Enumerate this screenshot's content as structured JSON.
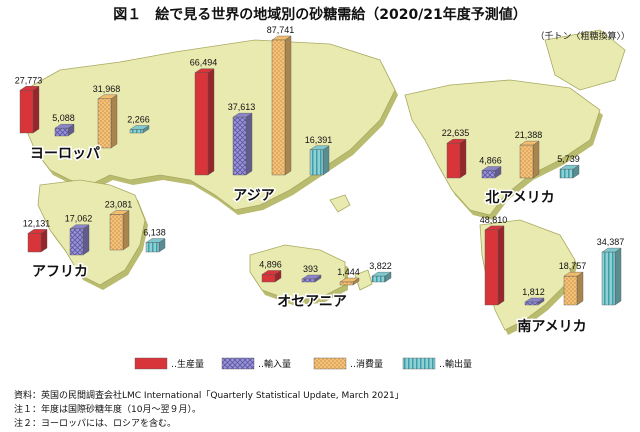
{
  "title": "図１　絵で見る世界の地域別の砂糖需給（2020/21年度予測値）",
  "unit_label": "（千トン〈粗糖換算〉）",
  "colors": {
    "production": "#d8353a",
    "imports": "#8a84c8",
    "consumption": "#f2be6e",
    "exports": "#7ec9cf",
    "land": "#e9eab0",
    "land_shadow": "#b9bb6e"
  },
  "chart_data": {
    "type": "bar",
    "title": "図１　絵で見る世界の地域別の砂糖需給（2020/21年度予測値）",
    "unit": "千トン〈粗糖換算〉",
    "series_names": [
      "生産量",
      "輸入量",
      "消費量",
      "輸出量"
    ],
    "legend_labels": [
      "‥生産量",
      "‥輸入量",
      "‥消費量",
      "‥輸出量"
    ],
    "regions": [
      {
        "name": "ヨーロッパ",
        "production": 27773,
        "imports": 5088,
        "consumption": 31968,
        "exports": 2266,
        "labels": [
          "27,773",
          "5,088",
          "31,968",
          "2,266"
        ]
      },
      {
        "name": "アジア",
        "production": 66494,
        "imports": 37613,
        "consumption": 87741,
        "exports": 16391,
        "labels": [
          "66,494",
          "37,613",
          "87,741",
          "16,391"
        ]
      },
      {
        "name": "アフリカ",
        "production": 12131,
        "imports": 17062,
        "consumption": 23081,
        "exports": 6138,
        "labels": [
          "12,131",
          "17,062",
          "23,081",
          "6,138"
        ]
      },
      {
        "name": "オセアニア",
        "production": 4896,
        "imports": 393,
        "consumption": 1444,
        "exports": 3822,
        "labels": [
          "4,896",
          "393",
          "1,444",
          "3,822"
        ]
      },
      {
        "name": "北アメリカ",
        "production": 22635,
        "imports": 4866,
        "consumption": 21388,
        "exports": 5739,
        "labels": [
          "22,635",
          "4,866",
          "21,388",
          "5,739"
        ]
      },
      {
        "name": "南アメリカ",
        "production": 48810,
        "imports": 1812,
        "consumption": 18757,
        "exports": 34387,
        "labels": [
          "48,810",
          "1,812",
          "18,757",
          "34,387"
        ]
      }
    ]
  },
  "notes": {
    "source": "資料：英国の民間調査会社LMC International「Quarterly Statistical Update, March 2021」",
    "note1": "注１：年度は国際砂糖年度（10月～翌９月）。",
    "note2": "注２：ヨーロッパには、ロシアを含む。"
  }
}
